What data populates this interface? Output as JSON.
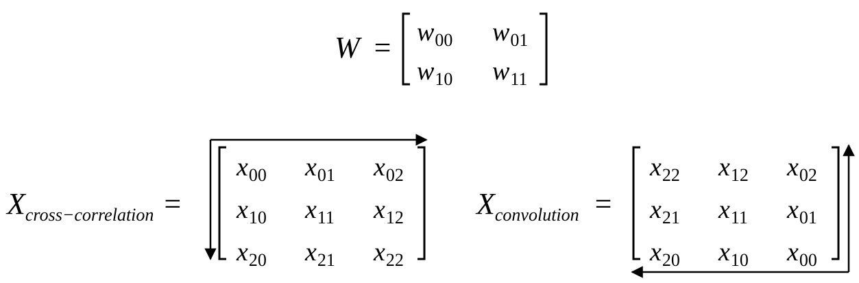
{
  "weight": {
    "label": "W",
    "eq": "=",
    "rows": [
      [
        {
          "base": "w",
          "sub": "00"
        },
        {
          "base": "w",
          "sub": "01"
        }
      ],
      [
        {
          "base": "w",
          "sub": "10"
        },
        {
          "base": "w",
          "sub": "11"
        }
      ]
    ]
  },
  "cross_correlation": {
    "label": "X",
    "sub": "cross−correlation",
    "eq": "=",
    "rows": [
      [
        {
          "base": "x",
          "sub": "00"
        },
        {
          "base": "x",
          "sub": "01"
        },
        {
          "base": "x",
          "sub": "02"
        }
      ],
      [
        {
          "base": "x",
          "sub": "10"
        },
        {
          "base": "x",
          "sub": "11"
        },
        {
          "base": "x",
          "sub": "12"
        }
      ],
      [
        {
          "base": "x",
          "sub": "20"
        },
        {
          "base": "x",
          "sub": "21"
        },
        {
          "base": "x",
          "sub": "22"
        }
      ]
    ]
  },
  "convolution": {
    "label": "X",
    "sub": "convolution",
    "eq": "=",
    "rows": [
      [
        {
          "base": "x",
          "sub": "22"
        },
        {
          "base": "x",
          "sub": "12"
        },
        {
          "base": "x",
          "sub": "02"
        }
      ],
      [
        {
          "base": "x",
          "sub": "21"
        },
        {
          "base": "x",
          "sub": "11"
        },
        {
          "base": "x",
          "sub": "01"
        }
      ],
      [
        {
          "base": "x",
          "sub": "20"
        },
        {
          "base": "x",
          "sub": "10"
        },
        {
          "base": "x",
          "sub": "00"
        }
      ]
    ]
  }
}
